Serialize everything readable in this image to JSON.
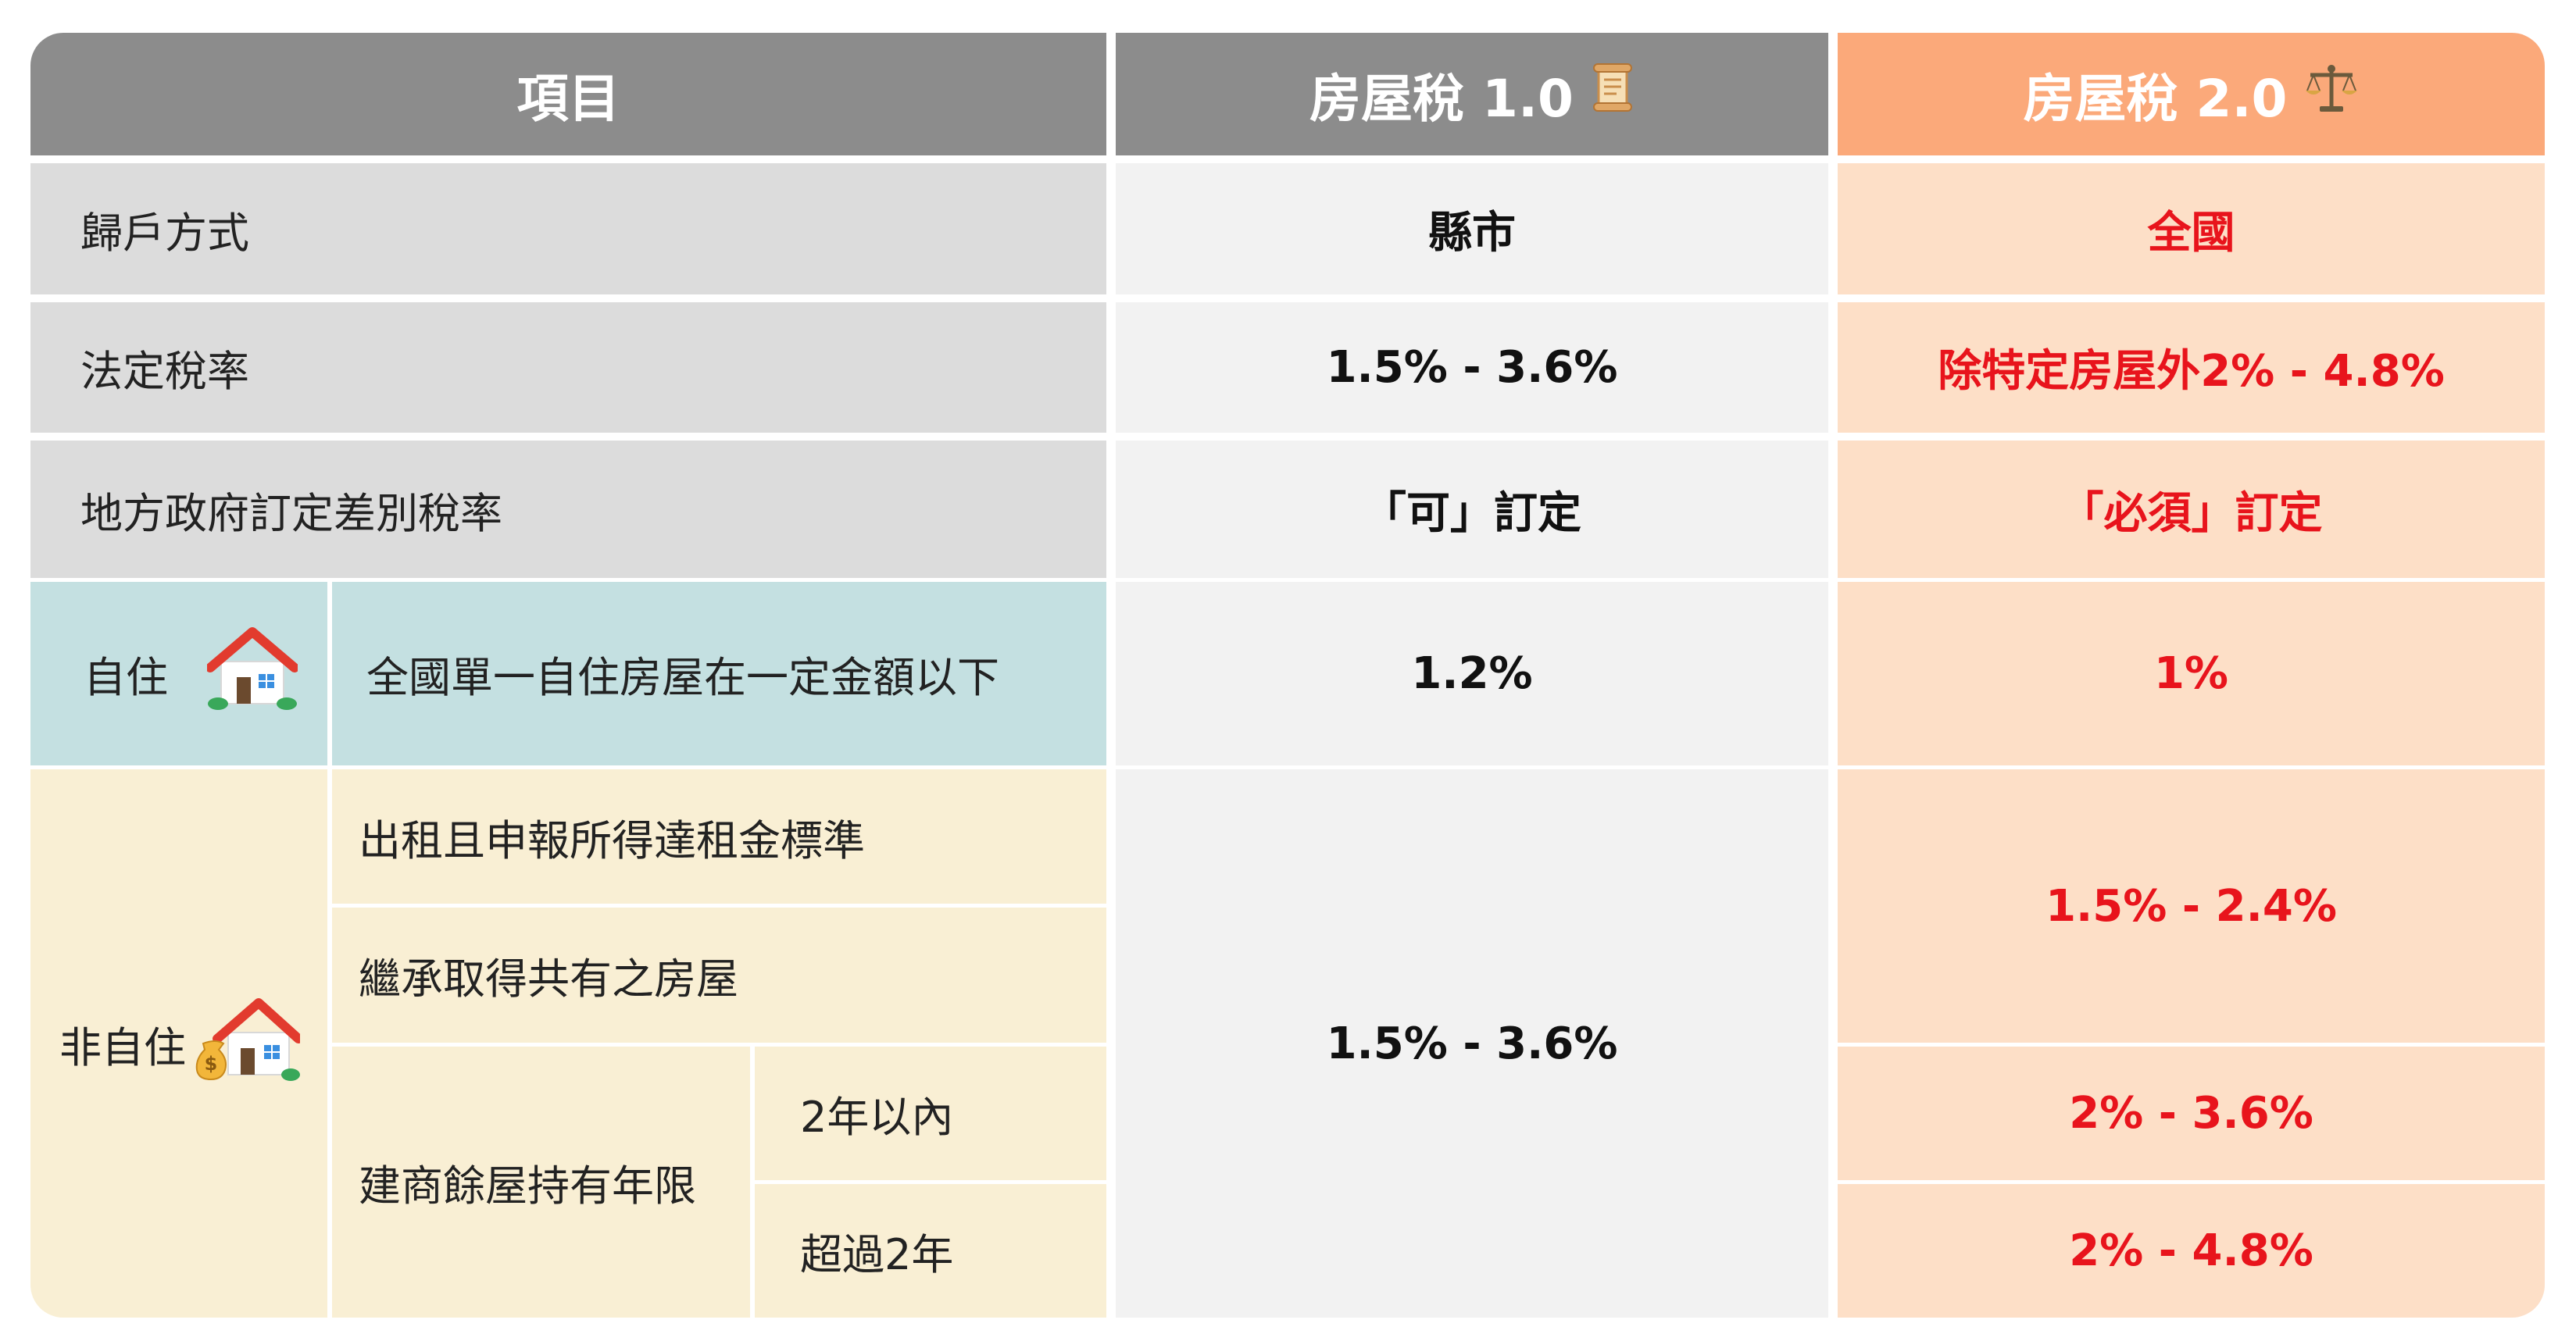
{
  "colors": {
    "header_gray": "#8c8c8c",
    "header_orange": "#fba97a",
    "label_gray": "#dcdcdc",
    "value_light": "#f2f2f2",
    "value_orange": "#fddfc7",
    "self_teal": "#c4e0e1",
    "nonself_cream": "#f9efd4",
    "red_text": "#e8141c"
  },
  "header": {
    "item": "項目",
    "tax1": "房屋稅 1.0",
    "tax1_icon": "scroll-icon",
    "tax2": "房屋稅 2.0",
    "tax2_icon": "balance-scale-icon"
  },
  "rows": {
    "household": {
      "label": "歸戶方式",
      "v1": "縣市",
      "v2": "全國"
    },
    "legal_rate": {
      "label": "法定稅率",
      "v1": "1.5% - 3.6%",
      "v2": "除特定房屋外2% - 4.8%"
    },
    "local_rate": {
      "label": "地方政府訂定差別稅率",
      "v1": "「可」訂定",
      "v2": "「必須」訂定"
    },
    "self_use": {
      "category": "自住",
      "category_icon": "house-icon",
      "desc": "全國單一自住房屋在一定金額以下",
      "v1": "1.2%",
      "v2": "1%"
    },
    "non_self": {
      "category": "非自住",
      "category_icon": "house-moneybag-icon",
      "rent": "出租且申報所得達租金標準",
      "inherit": "繼承取得共有之房屋",
      "builder": "建商餘屋持有年限",
      "within2": "2年以內",
      "over2": "超過2年",
      "v1": "1.5% - 3.6%",
      "v2_rent_inherit": "1.5% - 2.4%",
      "v2_within2": "2% - 3.6%",
      "v2_over2": "2% - 4.8%"
    }
  }
}
